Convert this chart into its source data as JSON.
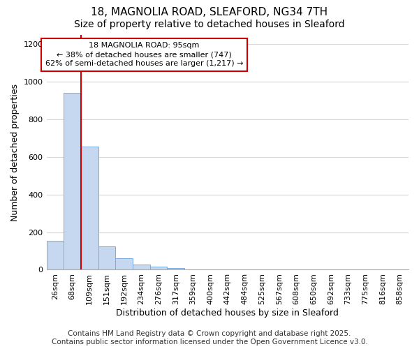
{
  "title_line1": "18, MAGNOLIA ROAD, SLEAFORD, NG34 7TH",
  "title_line2": "Size of property relative to detached houses in Sleaford",
  "xlabel": "Distribution of detached houses by size in Sleaford",
  "ylabel": "Number of detached properties",
  "categories": [
    "26sqm",
    "68sqm",
    "109sqm",
    "151sqm",
    "192sqm",
    "234sqm",
    "276sqm",
    "317sqm",
    "359sqm",
    "400sqm",
    "442sqm",
    "484sqm",
    "525sqm",
    "567sqm",
    "608sqm",
    "650sqm",
    "692sqm",
    "733sqm",
    "775sqm",
    "816sqm",
    "858sqm"
  ],
  "values": [
    155,
    940,
    655,
    125,
    60,
    28,
    15,
    8,
    3,
    2,
    1,
    1,
    0,
    0,
    0,
    0,
    0,
    0,
    0,
    0,
    0
  ],
  "bar_color": "#c5d8f0",
  "bar_edge_color": "#7aabe0",
  "vline_x": 2.0,
  "vline_color": "#cc0000",
  "annotation_line1": "18 MAGNOLIA ROAD: 95sqm",
  "annotation_line2": "← 38% of detached houses are smaller (747)",
  "annotation_line3": "62% of semi-detached houses are larger (1,217) →",
  "annotation_box_color": "#cc0000",
  "ylim": [
    0,
    1250
  ],
  "yticks": [
    0,
    200,
    400,
    600,
    800,
    1000,
    1200
  ],
  "footer_line1": "Contains HM Land Registry data © Crown copyright and database right 2025.",
  "footer_line2": "Contains public sector information licensed under the Open Government Licence v3.0.",
  "bg_color": "#ffffff",
  "plot_bg_color": "#ffffff",
  "grid_color": "#d0d8e8",
  "title_fontsize": 11,
  "subtitle_fontsize": 10,
  "axis_label_fontsize": 9,
  "tick_fontsize": 8,
  "annotation_fontsize": 8,
  "footer_fontsize": 7.5
}
